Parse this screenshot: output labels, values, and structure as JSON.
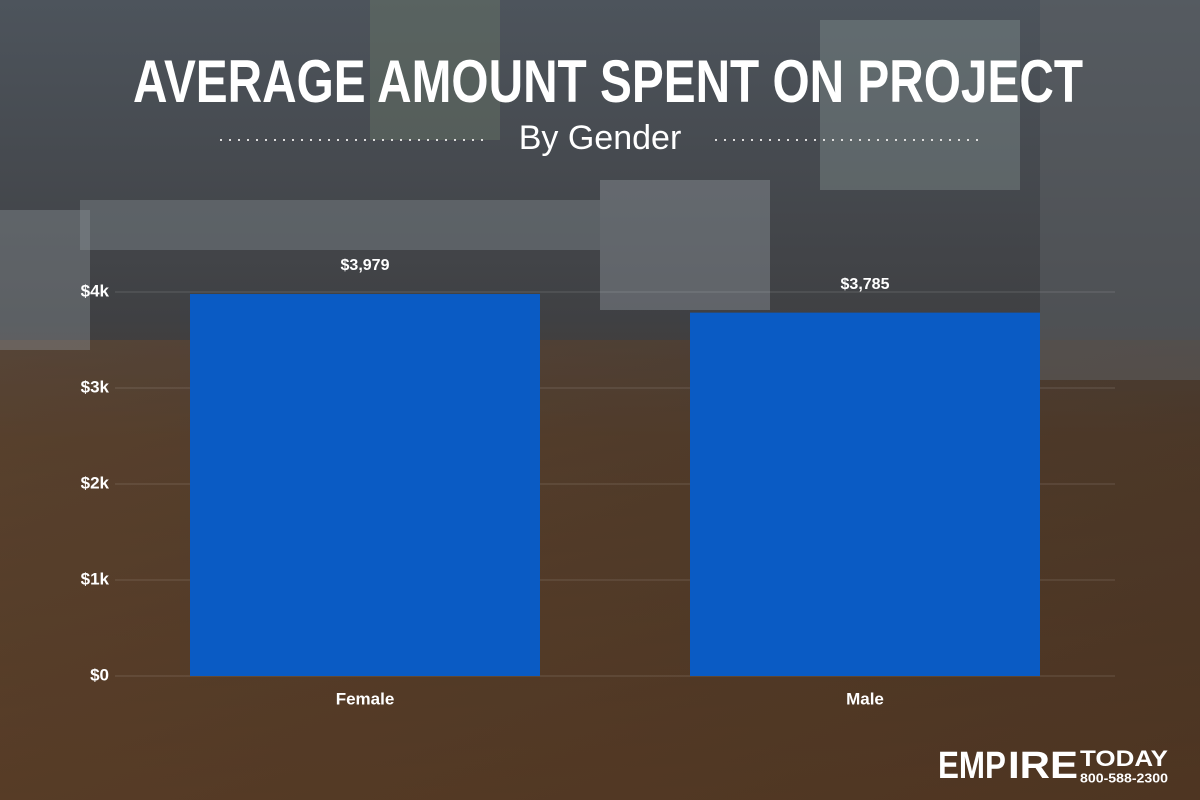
{
  "chart_data": {
    "type": "bar",
    "title": "AVERAGE AMOUNT SPENT ON PROJECT",
    "subtitle": "By Gender",
    "categories": [
      "Female",
      "Male"
    ],
    "values": [
      3979,
      3785
    ],
    "value_labels": [
      "$3,979",
      "$3,785"
    ],
    "color": "#0a5bc4",
    "ylim": [
      0,
      4000
    ],
    "yticks": [
      {
        "value": 0,
        "label": "$0"
      },
      {
        "value": 1000,
        "label": "$1k"
      },
      {
        "value": 2000,
        "label": "$2k"
      },
      {
        "value": 3000,
        "label": "$3k"
      },
      {
        "value": 4000,
        "label": "$4k"
      }
    ],
    "grid": true,
    "logo": {
      "name_left": "EMP",
      "name_mid": "IRE",
      "name_right": "TODAY",
      "phone": "800-588-2300"
    }
  }
}
